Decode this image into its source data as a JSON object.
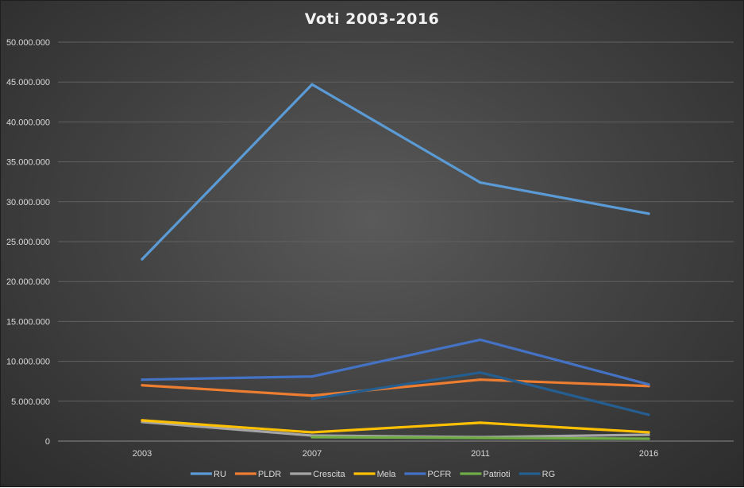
{
  "chart_data": {
    "type": "line",
    "title": "Voti 2003-2016",
    "xlabel": "",
    "ylabel": "",
    "categories": [
      "2003",
      "2007",
      "2011",
      "2016"
    ],
    "ylim": [
      0,
      50000000
    ],
    "yticks": [
      "0",
      "5.000.000",
      "10.000.000",
      "15.000.000",
      "20.000.000",
      "25.000.000",
      "30.000.000",
      "35.000.000",
      "40.000.000",
      "45.000.000",
      "50.000.000"
    ],
    "grid": true,
    "legend_position": "bottom",
    "series": [
      {
        "name": "RU",
        "color": "#5b9bd5",
        "values": [
          22800000,
          44700000,
          32400000,
          28500000
        ]
      },
      {
        "name": "PLDR",
        "color": "#ed7d31",
        "values": [
          7000000,
          5700000,
          7700000,
          6900000
        ]
      },
      {
        "name": "Crescita",
        "color": "#a5a5a5",
        "values": [
          2400000,
          700000,
          500000,
          800000
        ]
      },
      {
        "name": "Mela",
        "color": "#ffc000",
        "values": [
          2600000,
          1100000,
          2300000,
          1100000
        ]
      },
      {
        "name": "PCFR",
        "color": "#4472c4",
        "values": [
          7700000,
          8100000,
          12700000,
          7100000
        ]
      },
      {
        "name": "Patrioti",
        "color": "#70ad47",
        "values": [
          null,
          500000,
          400000,
          300000
        ]
      },
      {
        "name": "RG",
        "color": "#255e91",
        "values": [
          null,
          5300000,
          8600000,
          3300000
        ]
      }
    ]
  }
}
